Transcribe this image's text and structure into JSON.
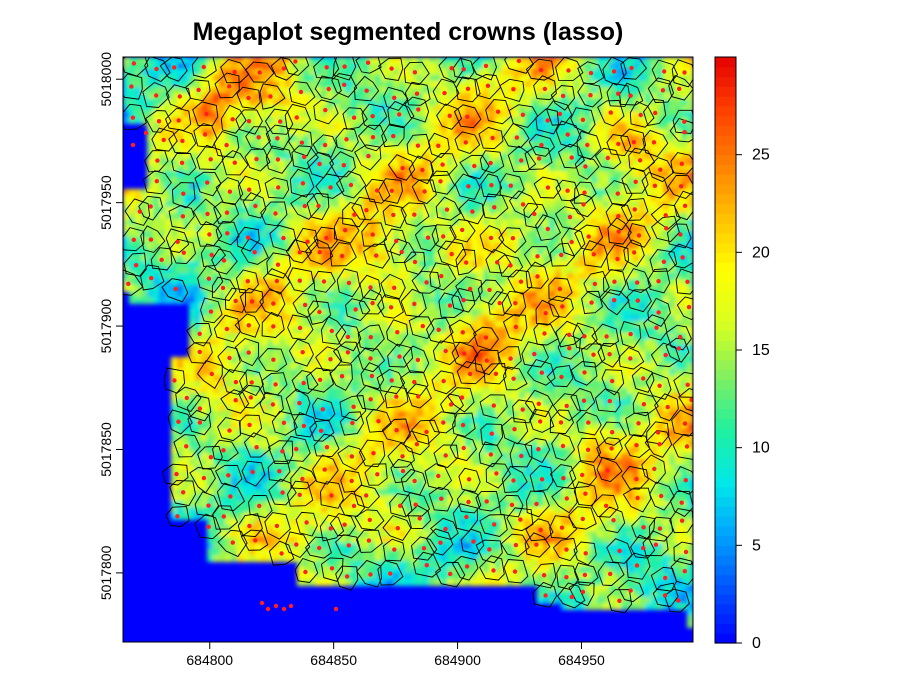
{
  "chart_data": {
    "type": "heatmap",
    "title": "Megaplot segmented crowns (lasso)",
    "subtitle": "",
    "xlabel": "",
    "ylabel": "",
    "xlim": [
      684765,
      684995
    ],
    "ylim": [
      5017772,
      5018009
    ],
    "x_ticks": [
      684800,
      684850,
      684900,
      684950
    ],
    "y_ticks": [
      5017800,
      5017850,
      5017900,
      5017950,
      5018000
    ],
    "colorbar": {
      "range": [
        0,
        30
      ],
      "ticks": [
        0,
        5,
        10,
        15,
        20,
        25
      ],
      "palette": [
        "#0000ff",
        "#0050ff",
        "#00a0ff",
        "#00e8e8",
        "#20f0a0",
        "#80f060",
        "#d8ff20",
        "#ffff00",
        "#ffc000",
        "#ff8000",
        "#ff4000",
        "#e60000"
      ]
    },
    "layers": [
      "canopy height model (raster)",
      "segmented crown polygons (black outlines)",
      "detected tree tops (red points)"
    ],
    "colors": {
      "ground": "#0000ff",
      "crown_outline": "#000000",
      "tree_top": "#ff2020"
    }
  }
}
